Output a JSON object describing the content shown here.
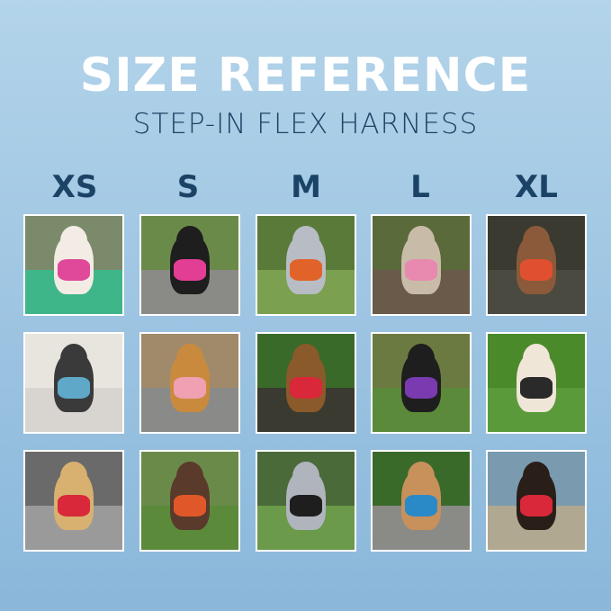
{
  "header": {
    "title": "SIZE REFERENCE",
    "subtitle": "STEP-IN FLEX HARNESS"
  },
  "sizes": [
    "XS",
    "S",
    "M",
    "L",
    "XL"
  ],
  "photos": [
    {
      "size": "XS",
      "harness_color": "#e0489a",
      "bg": "#7a8a6a",
      "ground": "#3fb58a",
      "dog": "#f2ece4"
    },
    {
      "size": "S",
      "harness_color": "#e23e93",
      "bg": "#6a8a4a",
      "ground": "#8a8a86",
      "dog": "#1e1e1e"
    },
    {
      "size": "M",
      "harness_color": "#e2632a",
      "bg": "#5a7a3a",
      "ground": "#7aa050",
      "dog": "#b8bcc4"
    },
    {
      "size": "L",
      "harness_color": "#e889b0",
      "bg": "#5a6a3a",
      "ground": "#6a5a4a",
      "dog": "#c8bca8"
    },
    {
      "size": "XL",
      "harness_color": "#e05030",
      "bg": "#3a3a30",
      "ground": "#4a4a40",
      "dog": "#8a5a3a"
    },
    {
      "size": "XS",
      "harness_color": "#5fa8c8",
      "bg": "#e8e4de",
      "ground": "#d8d4d0",
      "dog": "#3a3a3a"
    },
    {
      "size": "S",
      "harness_color": "#f0a0b0",
      "bg": "#a08a6a",
      "ground": "#8a8a88",
      "dog": "#c98a3e"
    },
    {
      "size": "M",
      "harness_color": "#d8283a",
      "bg": "#3a6a2a",
      "ground": "#3a3a30",
      "dog": "#8a5a2a"
    },
    {
      "size": "L",
      "harness_color": "#7a3ab0",
      "bg": "#6a7a40",
      "ground": "#5a8a3a",
      "dog": "#1e1e1e"
    },
    {
      "size": "XL",
      "harness_color": "#2a2a2a",
      "bg": "#4a8a2a",
      "ground": "#5a9a3a",
      "dog": "#efe6d8"
    },
    {
      "size": "XS",
      "harness_color": "#d8283a",
      "bg": "#6a6a6a",
      "ground": "#9a9a9a",
      "dog": "#d8b070"
    },
    {
      "size": "S",
      "harness_color": "#e0582a",
      "bg": "#6a8a4a",
      "ground": "#5a8a3a",
      "dog": "#5a3a2a"
    },
    {
      "size": "M",
      "harness_color": "#1e1e1e",
      "bg": "#4a6a3a",
      "ground": "#6a9a4a",
      "dog": "#b0b4bc"
    },
    {
      "size": "L",
      "harness_color": "#2a8ac8",
      "bg": "#3a6a2a",
      "ground": "#8a8a86",
      "dog": "#c8905a"
    },
    {
      "size": "XL",
      "harness_color": "#d8283a",
      "bg": "#7a9ab0",
      "ground": "#b0a890",
      "dog": "#2a1e18"
    }
  ]
}
